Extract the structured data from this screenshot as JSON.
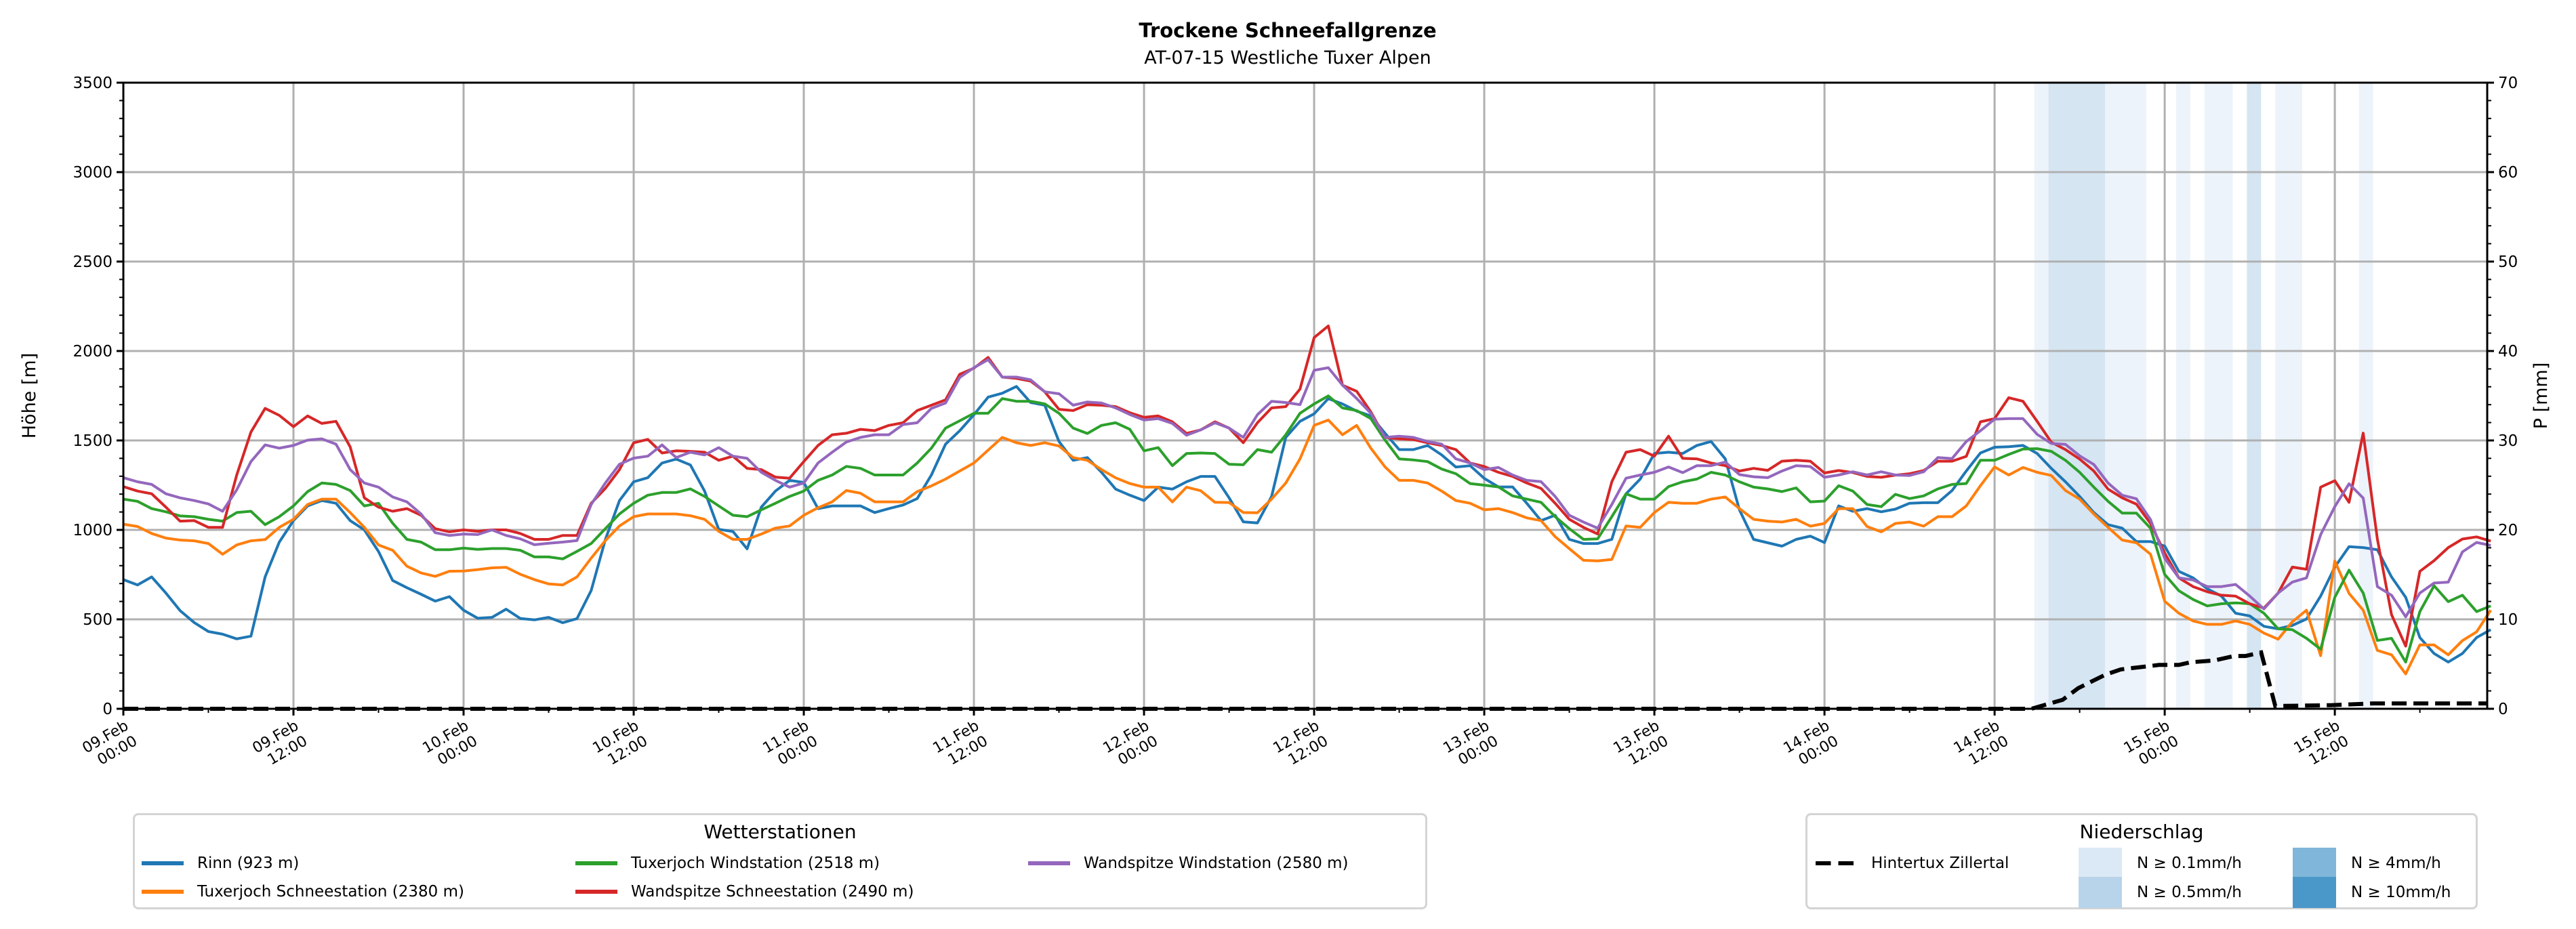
{
  "chart_data": {
    "type": "line",
    "title": "Trockene Schneefallgrenze",
    "subtitle": "AT-07-15 Westliche Tuxer Alpen",
    "ylabel": "Höhe [m]",
    "y2label": "P [mm]",
    "ylim": [
      0,
      3500
    ],
    "y2lim": [
      0,
      70
    ],
    "yticks": [
      0,
      500,
      1000,
      1500,
      2000,
      2500,
      3000,
      3500
    ],
    "y2ticks": [
      0,
      10,
      20,
      30,
      40,
      50,
      60,
      70
    ],
    "x_start": "09.Feb 00:00",
    "x_unit": "hours since start",
    "x_step_hours": 1,
    "xlim_hours": [
      0,
      166.75
    ],
    "grid": true,
    "xticks": [
      {
        "hour": 0,
        "date": "09.Feb",
        "time": "00:00"
      },
      {
        "hour": 12,
        "date": "09.Feb",
        "time": "12:00"
      },
      {
        "hour": 24,
        "date": "10.Feb",
        "time": "00:00"
      },
      {
        "hour": 36,
        "date": "10.Feb",
        "time": "12:00"
      },
      {
        "hour": 48,
        "date": "11.Feb",
        "time": "00:00"
      },
      {
        "hour": 60,
        "date": "11.Feb",
        "time": "12:00"
      },
      {
        "hour": 72,
        "date": "12.Feb",
        "time": "00:00"
      },
      {
        "hour": 84,
        "date": "12.Feb",
        "time": "12:00"
      },
      {
        "hour": 96,
        "date": "13.Feb",
        "time": "00:00"
      },
      {
        "hour": 108,
        "date": "13.Feb",
        "time": "12:00"
      },
      {
        "hour": 120,
        "date": "14.Feb",
        "time": "00:00"
      },
      {
        "hour": 132,
        "date": "14.Feb",
        "time": "12:00"
      },
      {
        "hour": 144,
        "date": "15.Feb",
        "time": "00:00"
      },
      {
        "hour": 156,
        "date": "15.Feb",
        "time": "12:00"
      }
    ],
    "series": [
      {
        "name": "Rinn (923 m)",
        "color": "#1f77b4",
        "values": [
          722,
          692,
          737,
          647,
          549,
          482,
          432,
          417,
          391,
          406,
          737,
          932,
          1052,
          1134,
          1164,
          1149,
          1052,
          1000,
          879,
          717,
          677,
          640,
          602,
          627,
          551,
          506,
          511,
          557,
          505,
          497,
          511,
          481,
          504,
          661,
          946,
          1164,
          1269,
          1292,
          1374,
          1396,
          1363,
          1217,
          1003,
          991,
          894,
          1127,
          1217,
          1277,
          1265,
          1119,
          1134,
          1134,
          1134,
          1097,
          1119,
          1139,
          1175,
          1307,
          1479,
          1554,
          1644,
          1742,
          1764,
          1802,
          1712,
          1697,
          1494,
          1389,
          1404,
          1322,
          1228,
          1194,
          1164,
          1239,
          1228,
          1269,
          1299,
          1299,
          1179,
          1045,
          1039,
          1187,
          1517,
          1607,
          1649,
          1734,
          1704,
          1664,
          1637,
          1540,
          1449,
          1449,
          1472,
          1419,
          1351,
          1359,
          1288,
          1240,
          1240,
          1149,
          1052,
          1082,
          947,
          924,
          924,
          947,
          1202,
          1284,
          1427,
          1434,
          1427,
          1472,
          1494,
          1397,
          1112,
          947,
          928,
          909,
          947,
          965,
          929,
          1134,
          1104,
          1119,
          1101,
          1116,
          1149,
          1152,
          1152,
          1220,
          1329,
          1430,
          1462,
          1465,
          1472,
          1427,
          1344,
          1269,
          1187,
          1097,
          1029,
          1010,
          935,
          935,
          910,
          768,
          732,
          671,
          630,
          534,
          519,
          461,
          447,
          466,
          502,
          630,
          792,
          906,
          901,
          889,
          737,
          623,
          398,
          309,
          261,
          309,
          398,
          442
        ]
      },
      {
        "name": "Tuxerjoch Schneestation (2380 m)",
        "color": "#ff7f0e",
        "values": [
          1032,
          1019,
          980,
          954,
          943,
          939,
          924,
          864,
          916,
          939,
          946,
          1014,
          1059,
          1142,
          1172,
          1172,
          1097,
          1014,
          916,
          886,
          797,
          759,
          740,
          769,
          770,
          778,
          788,
          791,
          752,
          722,
          698,
          692,
          737,
          842,
          940,
          1022,
          1074,
          1089,
          1089,
          1089,
          1079,
          1059,
          992,
          947,
          947,
          977,
          1010,
          1022,
          1082,
          1124,
          1157,
          1220,
          1205,
          1157,
          1157,
          1157,
          1214,
          1246,
          1284,
          1329,
          1374,
          1446,
          1517,
          1487,
          1472,
          1487,
          1469,
          1404,
          1389,
          1337,
          1291,
          1259,
          1239,
          1239,
          1156,
          1239,
          1219,
          1154,
          1153,
          1097,
          1096,
          1172,
          1262,
          1397,
          1584,
          1614,
          1532,
          1584,
          1457,
          1352,
          1277,
          1277,
          1262,
          1217,
          1164,
          1149,
          1112,
          1119,
          1097,
          1067,
          1052,
          962,
          895,
          830,
          827,
          835,
          1022,
          1014,
          1097,
          1154,
          1149,
          1149,
          1172,
          1184,
          1119,
          1059,
          1049,
          1044,
          1059,
          1021,
          1036,
          1119,
          1119,
          1019,
          989,
          1036,
          1044,
          1021,
          1074,
          1074,
          1134,
          1247,
          1352,
          1307,
          1349,
          1322,
          1304,
          1220,
          1172,
          1089,
          1014,
          943,
          928,
          864,
          601,
          534,
          491,
          472,
          472,
          491,
          472,
          423,
          389,
          486,
          551,
          297,
          826,
          645,
          551,
          326,
          302,
          195,
          357,
          357,
          302,
          381,
          430,
          551
        ]
      },
      {
        "name": "Tuxerjoch Windstation (2518 m)",
        "color": "#2ca02c",
        "values": [
          1172,
          1160,
          1119,
          1101,
          1078,
          1074,
          1059,
          1049,
          1097,
          1104,
          1029,
          1074,
          1134,
          1214,
          1262,
          1254,
          1220,
          1134,
          1149,
          1037,
          947,
          932,
          889,
          889,
          898,
          891,
          896,
          896,
          886,
          849,
          849,
          838,
          880,
          924,
          1007,
          1089,
          1149,
          1194,
          1209,
          1209,
          1229,
          1187,
          1134,
          1082,
          1074,
          1112,
          1149,
          1187,
          1217,
          1277,
          1307,
          1355,
          1344,
          1307,
          1307,
          1307,
          1374,
          1457,
          1569,
          1610,
          1652,
          1652,
          1734,
          1719,
          1719,
          1704,
          1652,
          1569,
          1539,
          1584,
          1599,
          1562,
          1442,
          1460,
          1359,
          1427,
          1430,
          1427,
          1367,
          1364,
          1449,
          1434,
          1532,
          1652,
          1704,
          1749,
          1682,
          1667,
          1622,
          1502,
          1397,
          1391,
          1382,
          1340,
          1314,
          1259,
          1250,
          1240,
          1190,
          1172,
          1154,
          1074,
          1007,
          947,
          950,
          1074,
          1202,
          1172,
          1172,
          1242,
          1269,
          1284,
          1322,
          1307,
          1269,
          1239,
          1229,
          1214,
          1235,
          1157,
          1161,
          1247,
          1217,
          1142,
          1130,
          1199,
          1175,
          1190,
          1229,
          1254,
          1259,
          1389,
          1389,
          1422,
          1452,
          1454,
          1439,
          1389,
          1322,
          1239,
          1160,
          1094,
          1094,
          1009,
          751,
          660,
          611,
          575,
          587,
          592,
          587,
          534,
          447,
          442,
          394,
          333,
          623,
          775,
          647,
          382,
          394,
          261,
          543,
          688,
          599,
          635,
          543,
          575
        ]
      },
      {
        "name": "Wandspitze Schneestation (2490 m)",
        "color": "#d62728",
        "values": [
          1242,
          1217,
          1202,
          1127,
          1049,
          1052,
          1014,
          1014,
          1307,
          1547,
          1679,
          1640,
          1577,
          1637,
          1595,
          1607,
          1464,
          1179,
          1127,
          1104,
          1119,
          1082,
          1007,
          989,
          1000,
          992,
          1000,
          1000,
          980,
          947,
          947,
          969,
          969,
          1149,
          1232,
          1337,
          1487,
          1506,
          1430,
          1442,
          1439,
          1434,
          1389,
          1412,
          1344,
          1337,
          1295,
          1289,
          1382,
          1472,
          1532,
          1540,
          1562,
          1555,
          1584,
          1599,
          1667,
          1697,
          1727,
          1870,
          1904,
          1964,
          1854,
          1847,
          1832,
          1772,
          1674,
          1667,
          1700,
          1697,
          1689,
          1655,
          1629,
          1637,
          1604,
          1539,
          1559,
          1604,
          1569,
          1487,
          1599,
          1682,
          1689,
          1787,
          2075,
          2140,
          1809,
          1775,
          1660,
          1517,
          1509,
          1505,
          1487,
          1472,
          1449,
          1374,
          1354,
          1322,
          1299,
          1262,
          1232,
          1149,
          1059,
          1014,
          977,
          1269,
          1434,
          1449,
          1412,
          1524,
          1400,
          1397,
          1374,
          1359,
          1329,
          1344,
          1333,
          1384,
          1389,
          1384,
          1318,
          1332,
          1321,
          1299,
          1294,
          1306,
          1314,
          1332,
          1384,
          1384,
          1411,
          1604,
          1622,
          1739,
          1719,
          1607,
          1490,
          1449,
          1396,
          1329,
          1228,
          1179,
          1144,
          1036,
          871,
          732,
          683,
          654,
          635,
          630,
          587,
          563,
          647,
          792,
          780,
          1239,
          1275,
          1154,
          1541,
          949,
          526,
          350,
          768,
          828,
          901,
          949,
          961,
          937
        ]
      },
      {
        "name": "Wandspitze Windstation (2580 m)",
        "color": "#9467bd",
        "values": [
          1292,
          1269,
          1254,
          1202,
          1179,
          1164,
          1145,
          1104,
          1224,
          1382,
          1475,
          1457,
          1472,
          1502,
          1509,
          1479,
          1337,
          1262,
          1239,
          1184,
          1157,
          1089,
          984,
          969,
          977,
          974,
          1000,
          969,
          950,
          917,
          925,
          932,
          940,
          1142,
          1262,
          1367,
          1401,
          1412,
          1475,
          1404,
          1434,
          1419,
          1460,
          1412,
          1400,
          1322,
          1277,
          1239,
          1262,
          1374,
          1434,
          1491,
          1517,
          1532,
          1532,
          1589,
          1599,
          1679,
          1709,
          1852,
          1907,
          1952,
          1854,
          1854,
          1839,
          1772,
          1761,
          1697,
          1715,
          1709,
          1682,
          1645,
          1614,
          1622,
          1595,
          1529,
          1559,
          1599,
          1569,
          1517,
          1644,
          1719,
          1712,
          1700,
          1892,
          1907,
          1809,
          1735,
          1652,
          1517,
          1524,
          1517,
          1494,
          1479,
          1397,
          1374,
          1337,
          1349,
          1307,
          1277,
          1270,
          1187,
          1082,
          1044,
          1010,
          1142,
          1289,
          1307,
          1322,
          1352,
          1320,
          1359,
          1359,
          1379,
          1309,
          1297,
          1292,
          1329,
          1359,
          1354,
          1294,
          1307,
          1325,
          1307,
          1325,
          1307,
          1304,
          1325,
          1404,
          1399,
          1494,
          1554,
          1619,
          1622,
          1622,
          1534,
          1483,
          1478,
          1414,
          1366,
          1262,
          1194,
          1174,
          1058,
          841,
          732,
          720,
          683,
          683,
          695,
          630,
          558,
          647,
          708,
          732,
          973,
          1130,
          1258,
          1178,
          683,
          635,
          514,
          647,
          703,
          708,
          877,
          930,
          913
        ]
      }
    ],
    "precip_line": {
      "name": "Hintertux Zillertal",
      "color": "#000000",
      "axis": "right",
      "points": [
        [
          0,
          0
        ],
        [
          134.6,
          0
        ],
        [
          136.8,
          1.0
        ],
        [
          137.9,
          2.3
        ],
        [
          139.8,
          3.8
        ],
        [
          140.9,
          4.4
        ],
        [
          143.6,
          4.9
        ],
        [
          145,
          4.9
        ],
        [
          145.8,
          5.2
        ],
        [
          147.5,
          5.4
        ],
        [
          148.9,
          5.9
        ],
        [
          149.7,
          5.9
        ],
        [
          150.8,
          6.3
        ],
        [
          151.8,
          0.3
        ],
        [
          155.7,
          0.4
        ],
        [
          158.7,
          0.6
        ],
        [
          166.75,
          0.6
        ]
      ]
    },
    "precip_bands": [
      {
        "start": 134.8,
        "end": 135.8,
        "level": "0.1"
      },
      {
        "start": 135.8,
        "end": 139.8,
        "level": "0.5"
      },
      {
        "start": 139.8,
        "end": 142.7,
        "level": "0.1"
      },
      {
        "start": 144.8,
        "end": 145.8,
        "level": "0.1"
      },
      {
        "start": 146.8,
        "end": 148.8,
        "level": "0.1"
      },
      {
        "start": 149.8,
        "end": 150.8,
        "level": "0.5"
      },
      {
        "start": 151.8,
        "end": 153.7,
        "level": "0.1"
      },
      {
        "start": 157.7,
        "end": 158.7,
        "level": "0.1"
      }
    ],
    "band_colors": {
      "0.1": "#edf3fa",
      "0.5": "#d5e5f2",
      "4": "#80b6d9",
      "10": "#4a98c9"
    }
  },
  "legend_stations": {
    "title": "Wetterstationen",
    "items": [
      "Rinn (923 m)",
      "Tuxerjoch Windstation (2518 m)",
      "Wandspitze Windstation (2580 m)",
      "Tuxerjoch Schneestation (2380 m)",
      "Wandspitze Schneestation (2490 m)"
    ],
    "colors": [
      "#1f77b4",
      "#2ca02c",
      "#9467bd",
      "#ff7f0e",
      "#d62728"
    ]
  },
  "legend_precip": {
    "title": "Niederschlag",
    "line_label": "Hintertux Zillertal",
    "levels": [
      {
        "label": "N ≥ 0.1mm/h",
        "color": "#dbe9f6"
      },
      {
        "label": "N ≥ 0.5mm/h",
        "color": "#b8d4ea"
      },
      {
        "label": "N ≥ 4mm/h",
        "color": "#80b6d9"
      },
      {
        "label": "N ≥ 10mm/h",
        "color": "#4a98c9"
      }
    ]
  }
}
